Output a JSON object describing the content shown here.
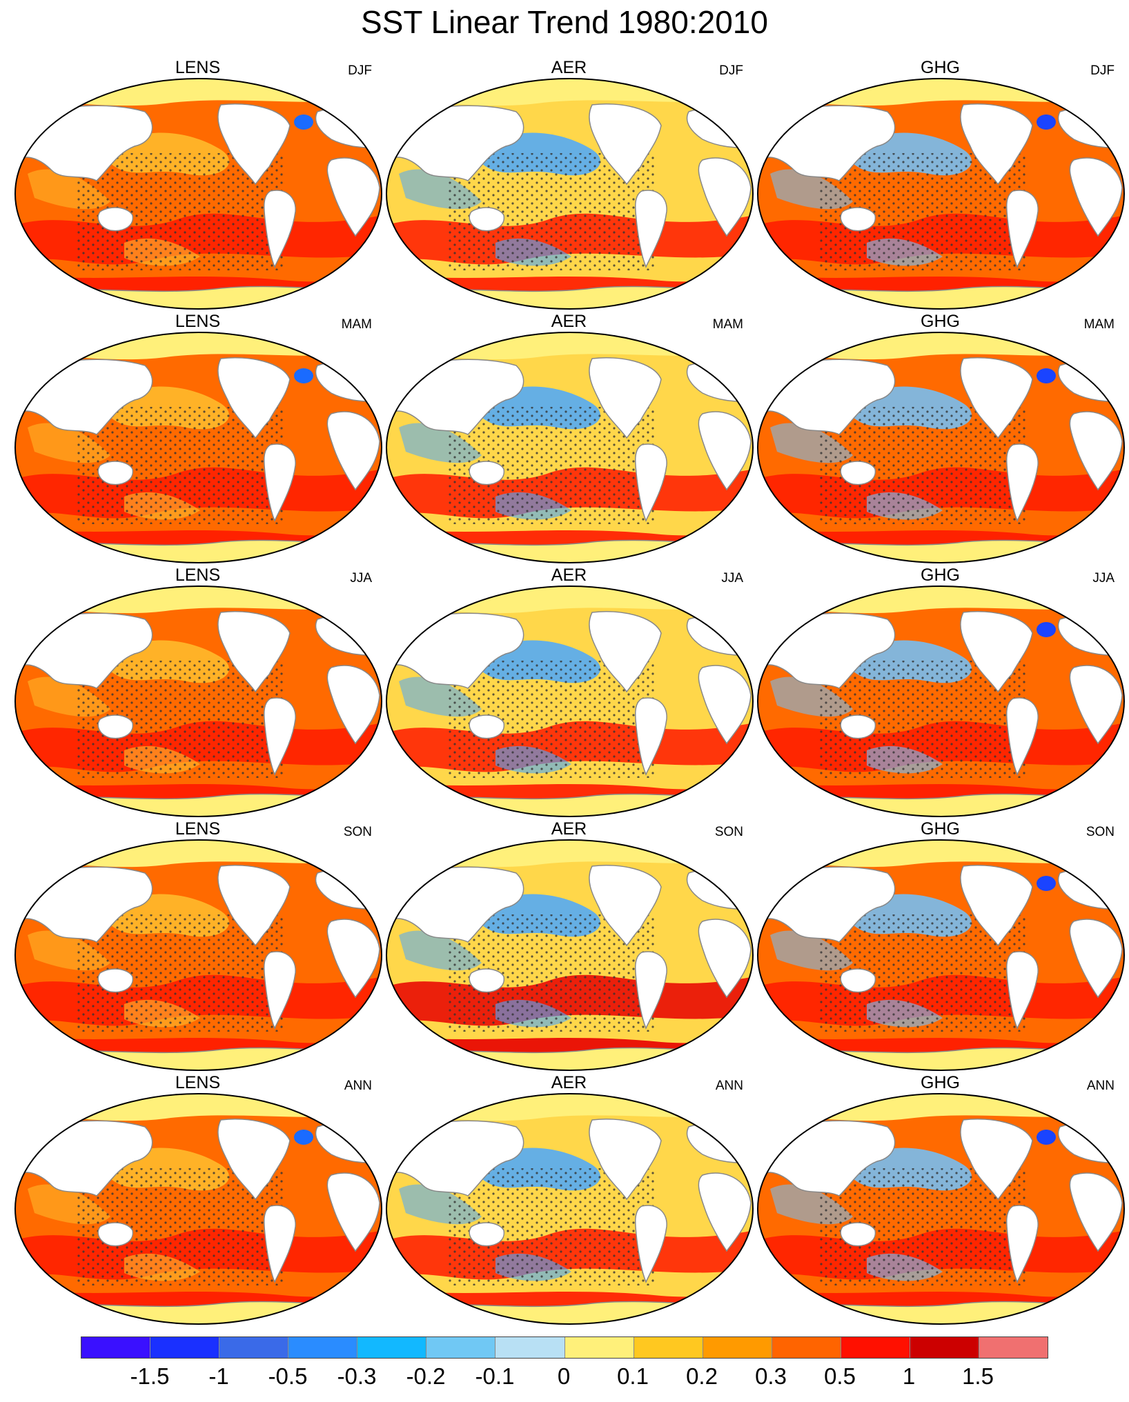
{
  "title": "SST Linear Trend 1980:2010",
  "models": [
    "LENS",
    "AER",
    "GHG"
  ],
  "seasons": [
    "DJF",
    "MAM",
    "JJA",
    "SON",
    "ANN"
  ],
  "panels": [
    {
      "model": "LENS",
      "season": "DJF",
      "base": "#ff6a00",
      "warm": "#ff1a00",
      "cool": "#ffbe2e",
      "spots": [
        {
          "c": "#1a6bff",
          "s": "nao"
        }
      ]
    },
    {
      "model": "AER",
      "season": "DJF",
      "base": "#ffd74a",
      "warm": "#ff1a00",
      "cool": "#4aa8ff",
      "spots": []
    },
    {
      "model": "GHG",
      "season": "DJF",
      "base": "#ff6a00",
      "warm": "#ff1a00",
      "cool": "#6fc2ff",
      "spots": [
        {
          "c": "#1a44ff",
          "s": "nao"
        }
      ]
    },
    {
      "model": "LENS",
      "season": "MAM",
      "base": "#ff6a00",
      "warm": "#ff1a00",
      "cool": "#ffbe2e",
      "spots": [
        {
          "c": "#1a6bff",
          "s": "nao"
        }
      ]
    },
    {
      "model": "AER",
      "season": "MAM",
      "base": "#ffd74a",
      "warm": "#ff1a00",
      "cool": "#4aa8ff",
      "spots": []
    },
    {
      "model": "GHG",
      "season": "MAM",
      "base": "#ff6a00",
      "warm": "#ff1a00",
      "cool": "#6fc2ff",
      "spots": [
        {
          "c": "#1a44ff",
          "s": "nao"
        }
      ]
    },
    {
      "model": "LENS",
      "season": "JJA",
      "base": "#ff6a00",
      "warm": "#ff1a00",
      "cool": "#ffbe2e",
      "spots": []
    },
    {
      "model": "AER",
      "season": "JJA",
      "base": "#ffd74a",
      "warm": "#ff1a00",
      "cool": "#4aa8ff",
      "spots": []
    },
    {
      "model": "GHG",
      "season": "JJA",
      "base": "#ff6a00",
      "warm": "#ff1a00",
      "cool": "#6fc2ff",
      "spots": [
        {
          "c": "#1a44ff",
          "s": "nao"
        }
      ]
    },
    {
      "model": "LENS",
      "season": "SON",
      "base": "#ff6a00",
      "warm": "#ff1a00",
      "cool": "#ffbe2e",
      "spots": []
    },
    {
      "model": "AER",
      "season": "SON",
      "base": "#ffd74a",
      "warm": "#e80000",
      "cool": "#4aa8ff",
      "spots": []
    },
    {
      "model": "GHG",
      "season": "SON",
      "base": "#ff6a00",
      "warm": "#ff1a00",
      "cool": "#6fc2ff",
      "spots": [
        {
          "c": "#1a44ff",
          "s": "nao"
        }
      ]
    },
    {
      "model": "LENS",
      "season": "ANN",
      "base": "#ff6a00",
      "warm": "#ff1a00",
      "cool": "#ffbe2e",
      "spots": [
        {
          "c": "#1a6bff",
          "s": "nao"
        }
      ]
    },
    {
      "model": "AER",
      "season": "ANN",
      "base": "#ffd74a",
      "warm": "#ff1a00",
      "cool": "#4aa8ff",
      "spots": []
    },
    {
      "model": "GHG",
      "season": "ANN",
      "base": "#ff6a00",
      "warm": "#ff1a00",
      "cool": "#6fc2ff",
      "spots": [
        {
          "c": "#1a44ff",
          "s": "nao"
        }
      ]
    }
  ],
  "colorbar": {
    "colors": [
      "#3a10ff",
      "#1a30ff",
      "#3a6ae8",
      "#2a8cff",
      "#12b8ff",
      "#70c8f4",
      "#b8e0f4",
      "#fff07a",
      "#ffc820",
      "#ff9a00",
      "#ff6400",
      "#ff1000",
      "#cc0000",
      "#f07070"
    ],
    "tick_labels": [
      "-1.5",
      "-1",
      "-0.5",
      "-0.3",
      "-0.2",
      "-0.1",
      "0",
      "0.1",
      "0.2",
      "0.3",
      "0.5",
      "1",
      "1.5"
    ]
  }
}
